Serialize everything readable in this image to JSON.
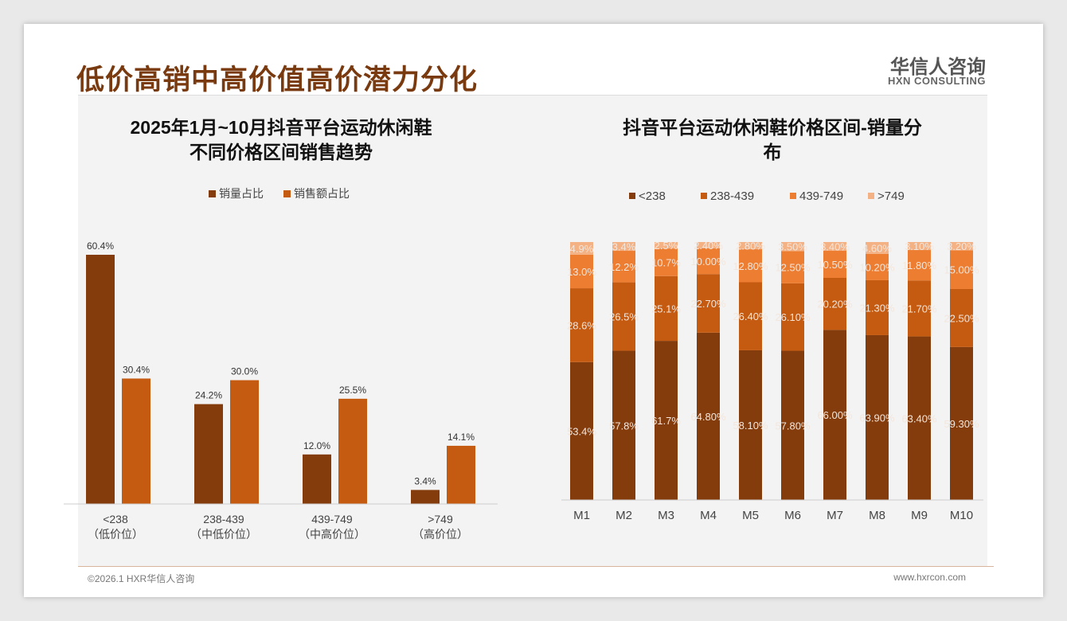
{
  "header": {
    "title": "低价高销中高价值高价潜力分化",
    "logo_cn": "华信人咨询",
    "logo_en": "HXN CONSULTING"
  },
  "footer": {
    "left": "©2026.1 HXR华信人咨询",
    "right": "www.hxrcon.com"
  },
  "colors": {
    "c1": "#843c0c",
    "c2": "#c55a11",
    "c3": "#ed7d31",
    "c4": "#f4b183",
    "title": "#7a3a10"
  },
  "chart_data": [
    {
      "type": "bar",
      "title_line1": "2025年1月~10月抖音平台运动休闲鞋",
      "title_line2": "不同价格区间销售趋势",
      "categories": [
        "<238",
        "238-439",
        "439-749",
        ">749"
      ],
      "sublabels": [
        "（低价位）",
        "（中低价位）",
        "（中高价位）",
        "（高价位）"
      ],
      "series": [
        {
          "name": "销量占比",
          "values": [
            60.4,
            24.2,
            12.0,
            3.4
          ],
          "labels": [
            "60.4%",
            "24.2%",
            "12.0%",
            "3.4%"
          ]
        },
        {
          "name": "销售额占比",
          "values": [
            30.4,
            30.0,
            25.5,
            14.1
          ],
          "labels": [
            "30.4%",
            "30.0%",
            "25.5%",
            "14.1%"
          ]
        }
      ],
      "legend": "top",
      "ylim": [
        0,
        65
      ]
    },
    {
      "type": "bar",
      "stacked": true,
      "title_line1": "抖音平台运动休闲鞋价格区间-销量分",
      "title_line2": "布",
      "categories": [
        "M1",
        "M2",
        "M3",
        "M4",
        "M5",
        "M6",
        "M7",
        "M8",
        "M9",
        "M10"
      ],
      "series": [
        {
          "name": "<238",
          "values": [
            53.4,
            57.8,
            61.7,
            64.8,
            58.1,
            57.8,
            66.0,
            63.9,
            63.4,
            59.3
          ],
          "labels": [
            "53.4%",
            "57.8%",
            "61.7%",
            "64.80%",
            "58.10%",
            "57.80%",
            "66.00%",
            "63.90%",
            "63.40%",
            "59.30%"
          ]
        },
        {
          "name": "238-439",
          "values": [
            28.6,
            26.5,
            25.1,
            22.7,
            26.4,
            26.1,
            20.2,
            21.3,
            21.7,
            22.5
          ],
          "labels": [
            "28.6%",
            "26.5%",
            "25.1%",
            "22.70%",
            "26.40%",
            "26.10%",
            "20.20%",
            "21.30%",
            "21.70%",
            "22.50%"
          ]
        },
        {
          "name": "439-749",
          "values": [
            13.0,
            12.2,
            10.7,
            10.0,
            12.8,
            12.5,
            10.5,
            10.2,
            11.8,
            15.0
          ],
          "labels": [
            "13.0%",
            "12.2%",
            "10.7%",
            "10.00%",
            "12.80%",
            "12.50%",
            "10.50%",
            "10.20%",
            "11.80%",
            "15.00%"
          ]
        },
        {
          "name": ">749",
          "values": [
            4.9,
            3.4,
            2.5,
            2.4,
            2.8,
            3.5,
            3.4,
            4.6,
            3.1,
            3.2
          ],
          "labels": [
            "4.9%",
            "3.4%",
            "2.5%",
            "2.40%",
            "2.80%",
            "3.50%",
            "3.40%",
            "4.60%",
            "3.10%",
            "3.20%"
          ]
        }
      ],
      "legend": "top",
      "ylim": [
        0,
        100
      ]
    }
  ]
}
